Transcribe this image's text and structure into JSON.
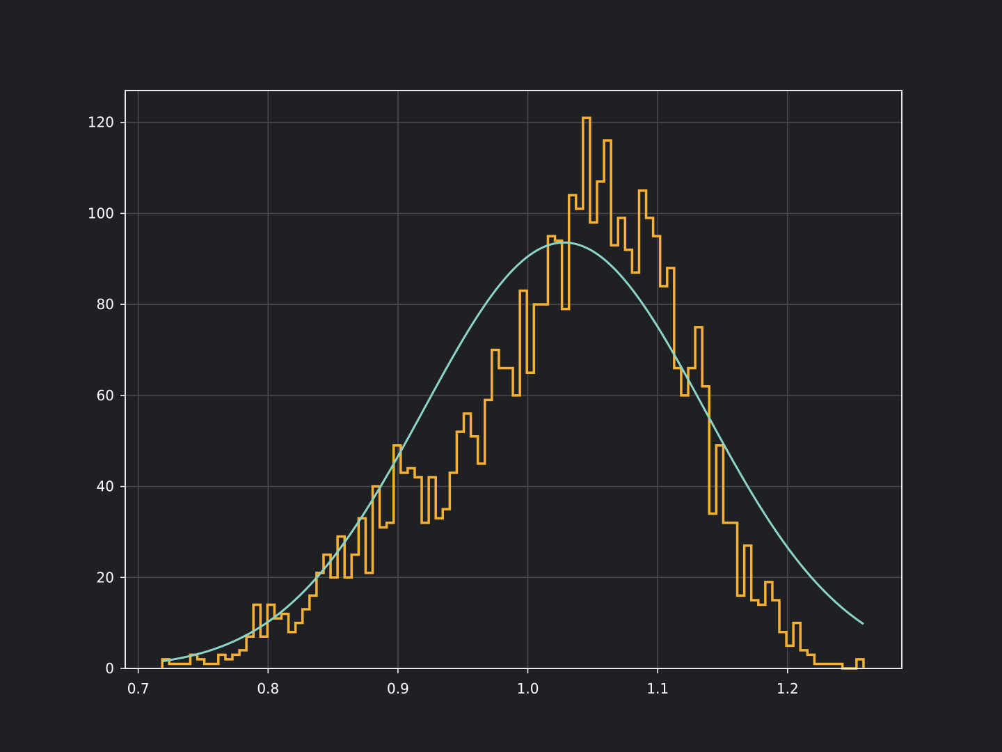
{
  "chart_data": {
    "type": "histogram",
    "xlim": [
      0.69,
      1.288
    ],
    "ylim": [
      0,
      127
    ],
    "xticks": [
      0.7,
      0.8,
      0.9,
      1.0,
      1.1,
      1.2
    ],
    "xtick_labels": [
      "0.7",
      "0.8",
      "0.9",
      "1.0",
      "1.1",
      "1.2"
    ],
    "yticks": [
      0,
      20,
      40,
      60,
      80,
      100,
      120
    ],
    "ytick_labels": [
      "0",
      "20",
      "40",
      "60",
      "80",
      "100",
      "120"
    ],
    "grid": true,
    "series": [
      {
        "kind": "step-histogram",
        "color": "#f5b035",
        "bin_start": 0.7185,
        "bin_width": 0.0054,
        "counts": [
          2,
          1,
          1,
          1,
          3,
          2,
          1,
          1,
          3,
          2,
          3,
          4,
          7,
          14,
          7,
          14,
          11,
          12,
          8,
          10,
          13,
          16,
          21,
          25,
          20,
          29,
          20,
          25,
          33,
          21,
          40,
          31,
          32,
          49,
          43,
          44,
          42,
          32,
          42,
          33,
          35,
          43,
          52,
          56,
          51,
          45,
          59,
          70,
          66,
          66,
          60,
          83,
          65,
          80,
          80,
          95,
          94,
          79,
          104,
          101,
          121,
          98,
          107,
          116,
          93,
          99,
          92,
          87,
          105,
          99,
          95,
          84,
          88,
          66,
          60,
          66,
          75,
          62,
          34,
          49,
          32,
          32,
          16,
          27,
          15,
          14,
          19,
          15,
          8,
          5,
          10,
          4,
          3,
          1,
          1,
          1,
          1,
          0,
          0,
          2
        ]
      },
      {
        "kind": "gaussian-curve",
        "color": "#8dd3c7",
        "x_start": 0.7185,
        "x_end": 1.2585,
        "peak": 93.6,
        "mean": 1.028,
        "sigma": 0.1084
      }
    ]
  }
}
